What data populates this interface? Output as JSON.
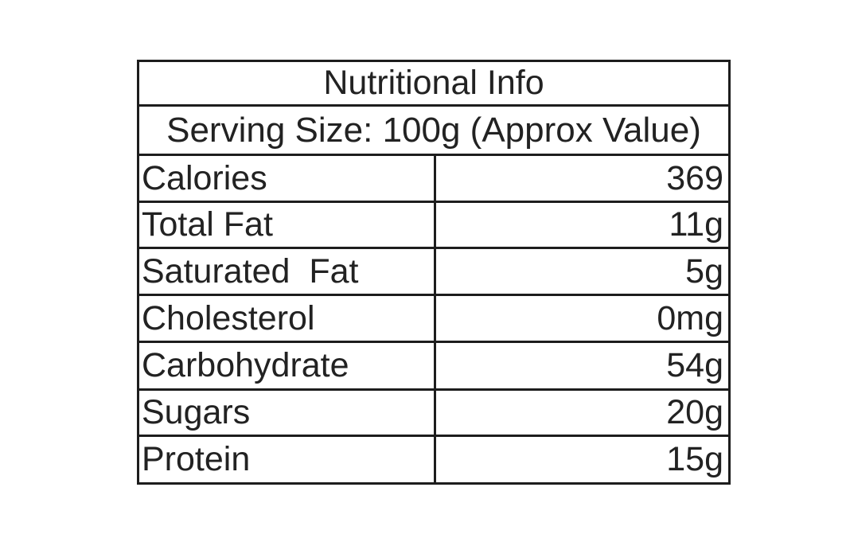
{
  "colors": {
    "border": "#1d1d1d",
    "text": "#222222",
    "bg": "#ffffff"
  },
  "table": {
    "title": "Nutritional Info",
    "serving": "Serving Size: 100g (Approx Value)",
    "rows": [
      {
        "label": "Calories",
        "value": "369"
      },
      {
        "label": "Total Fat",
        "value": "11g"
      },
      {
        "label": "Saturated  Fat",
        "value": "5g"
      },
      {
        "label": "Cholesterol",
        "value": "0mg"
      },
      {
        "label": "Carbohydrate",
        "value": "54g"
      },
      {
        "label": "Sugars",
        "value": "20g"
      },
      {
        "label": "Protein",
        "value": "15g"
      }
    ]
  }
}
